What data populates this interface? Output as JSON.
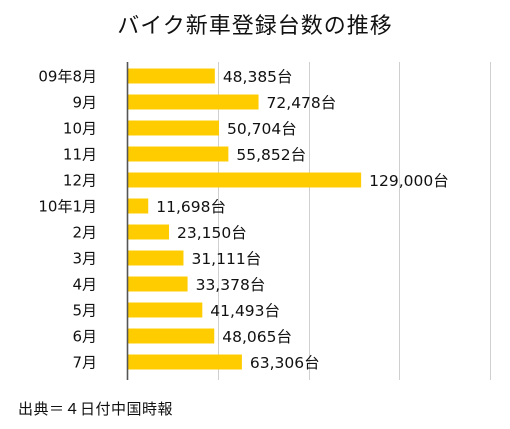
{
  "chart_data": {
    "type": "bar",
    "orientation": "horizontal",
    "title": "バイク新車登録台数の推移",
    "categories": [
      "09年8月",
      "9月",
      "10月",
      "11月",
      "12月",
      "10年1月",
      "2月",
      "3月",
      "4月",
      "5月",
      "6月",
      "7月"
    ],
    "values": [
      48385,
      72478,
      50704,
      55852,
      129000,
      11698,
      23150,
      31111,
      33378,
      41493,
      48065,
      63306
    ],
    "data_labels": [
      "48,385台",
      "72,478台",
      "50,704台",
      "55,852台",
      "129,000台",
      "11,698台",
      "23,150台",
      "31,111台",
      "33,378台",
      "41,493台",
      "48,065台",
      "63,306台"
    ],
    "xlim": [
      0,
      200000
    ],
    "grid": true,
    "bar_color": "#ffcc00",
    "legend": "none",
    "source": "出典＝４日付中国時報"
  }
}
